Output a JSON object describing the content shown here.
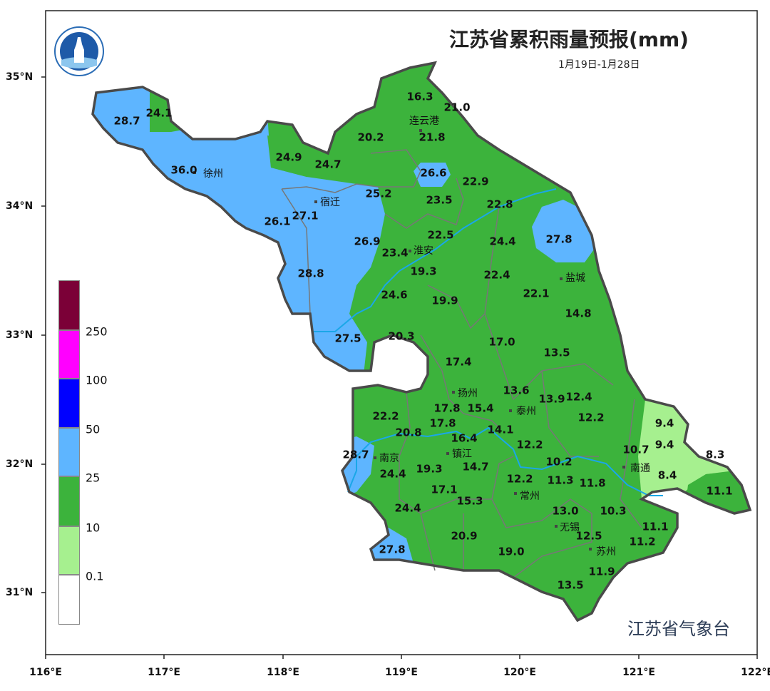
{
  "title": "江苏省累积雨量预报(mm)",
  "subtitle": "1月19日-1月28日",
  "credit": "江苏省气象台",
  "logo_text": "江苏省气象台",
  "axes": {
    "lat_labels": [
      "35°N",
      "34°N",
      "33°N",
      "32°N",
      "31°N"
    ],
    "lon_labels": [
      "116°E",
      "117°E",
      "118°E",
      "119°E",
      "120°E",
      "121°E",
      "122°E"
    ]
  },
  "legend": {
    "labels": [
      "250",
      "100",
      "50",
      "25",
      "10",
      "0.1"
    ],
    "colors": [
      "#7b0037",
      "#ff00ff",
      "#0000ff",
      "#5eb5ff",
      "#3cb33c",
      "#a6f08f",
      "#ffffff"
    ]
  },
  "colors": {
    "outline": "#4a4a4a",
    "river": "#1aa7e8",
    "boundary": "#777777"
  },
  "cities": [
    "连云港",
    "徐州",
    "宿迁",
    "淮安",
    "盐城",
    "扬州",
    "泰州",
    "镇江",
    "南京",
    "南通",
    "常州",
    "无锡",
    "苏州"
  ],
  "values": [
    "16.3",
    "21.0",
    "20.2",
    "21.8",
    "28.7",
    "24.1",
    "24.9",
    "24.7",
    "36.0",
    "26.6",
    "22.9",
    "25.2",
    "23.5",
    "22.8",
    "27.1",
    "26.1",
    "22.5",
    "24.4",
    "27.8",
    "26.9",
    "23.4",
    "19.3",
    "22.4",
    "28.8",
    "22.1",
    "24.6",
    "19.9",
    "14.8",
    "27.5",
    "20.3",
    "17.0",
    "13.5",
    "17.4",
    "13.6",
    "13.9",
    "12.4",
    "17.8",
    "17.8",
    "15.4",
    "22.2",
    "12.2",
    "9.4",
    "20.8",
    "14.1",
    "16.4",
    "12.2",
    "28.7",
    "10.7",
    "9.4",
    "8.3",
    "19.3",
    "14.7",
    "24.4",
    "10.2",
    "12.2",
    "11.3",
    "8.4",
    "11.8",
    "17.1",
    "11.1",
    "15.3",
    "24.4",
    "10.3",
    "13.0",
    "11.1",
    "20.9",
    "12.5",
    "11.2",
    "27.8",
    "19.0",
    "11.9",
    "13.5"
  ]
}
